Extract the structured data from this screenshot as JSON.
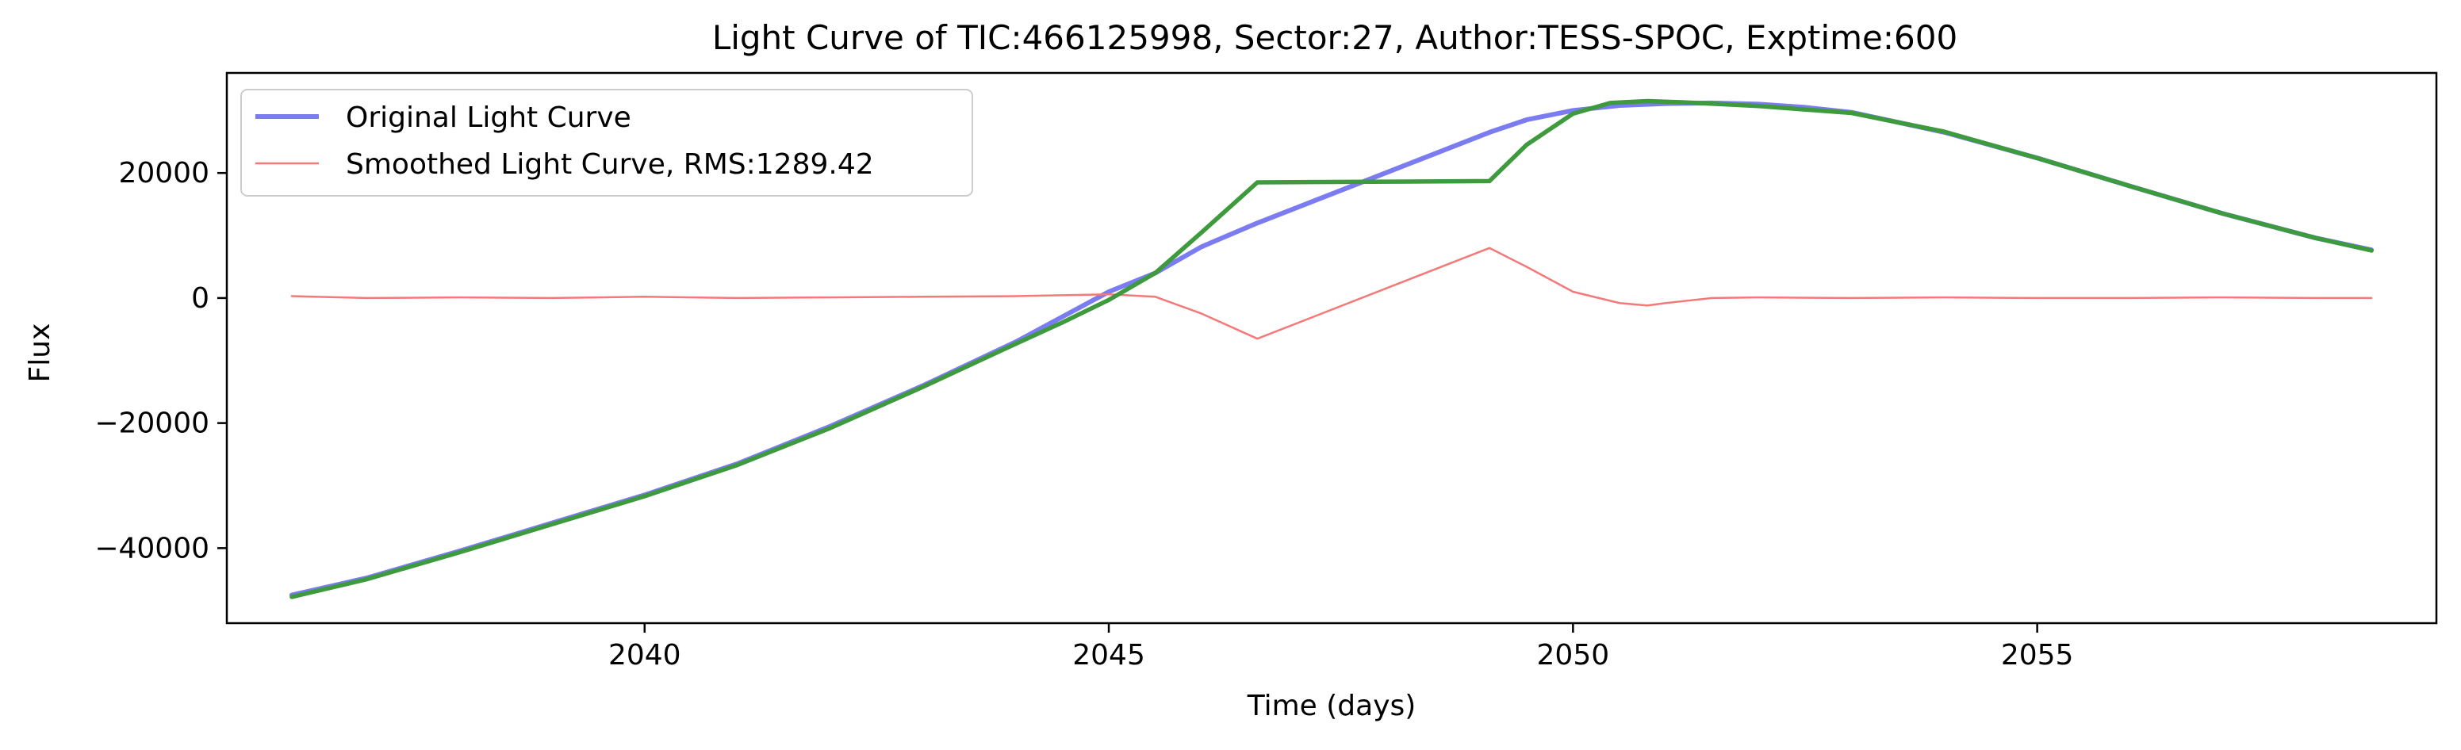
{
  "chart_data": {
    "type": "line",
    "title": "Light Curve of TIC:466125998, Sector:27, Author:TESS-SPOC, Exptime:600",
    "xlabel": "Time (days)",
    "ylabel": "Flux",
    "xlim": [
      2035.5,
      2059.3
    ],
    "ylim": [
      -52000,
      36000
    ],
    "xticks": [
      2040,
      2045,
      2050,
      2055
    ],
    "yticks": [
      20000,
      0,
      -20000,
      -40000
    ],
    "xtick_labels": [
      "2040",
      "2045",
      "2050",
      "2055"
    ],
    "ytick_labels": [
      "20000",
      "0",
      "−20000",
      "−40000"
    ],
    "grid": false,
    "legend_position": "upper-left",
    "series": [
      {
        "name": "Original Light Curve",
        "color": "#7b7bf2",
        "x": [
          2036.2,
          2037.0,
          2038.0,
          2039.0,
          2040.0,
          2041.0,
          2042.0,
          2043.0,
          2044.0,
          2045.0,
          2045.5,
          2046.0,
          2046.6,
          2049.1,
          2049.5,
          2050.0,
          2050.5,
          2051.0,
          2051.5,
          2052.0,
          2052.5,
          2053.0,
          2054.0,
          2055.0,
          2056.0,
          2057.0,
          2058.0,
          2058.6
        ],
        "values": [
          -47500,
          -44800,
          -40500,
          -36000,
          -31500,
          -26500,
          -20500,
          -14000,
          -7000,
          1000,
          4000,
          8200,
          12000,
          26500,
          28500,
          30000,
          30800,
          31100,
          31200,
          31000,
          30500,
          29700,
          26500,
          22400,
          17900,
          13500,
          9600,
          7700
        ]
      },
      {
        "name": "Smoothed Light Curve, RMS:1289.42",
        "color": "#f47a7a",
        "x": [
          2036.2,
          2037.0,
          2038.0,
          2039.0,
          2040.0,
          2041.0,
          2042.0,
          2043.0,
          2044.0,
          2045.0,
          2045.5,
          2046.0,
          2046.6,
          2049.1,
          2049.5,
          2050.0,
          2050.5,
          2050.8,
          2051.0,
          2051.5,
          2052.0,
          2053.0,
          2054.0,
          2055.0,
          2056.0,
          2057.0,
          2058.0,
          2058.6
        ],
        "values": [
          300,
          0,
          100,
          0,
          200,
          0,
          100,
          200,
          300,
          600,
          200,
          -2500,
          -6500,
          8000,
          5000,
          1000,
          -800,
          -1200,
          -800,
          0,
          100,
          0,
          100,
          0,
          0,
          100,
          0,
          0
        ]
      },
      {
        "color": "#3d9a3d",
        "x": [
          2036.2,
          2037.0,
          2038.0,
          2039.0,
          2040.0,
          2041.0,
          2042.0,
          2043.0,
          2044.0,
          2044.5,
          2045.0,
          2045.5,
          2046.0,
          2046.6,
          2049.1,
          2049.5,
          2050.0,
          2050.4,
          2050.8,
          2051.2,
          2051.6,
          2052.0,
          2053.0,
          2054.0,
          2055.0,
          2056.0,
          2057.0,
          2058.0,
          2058.6
        ],
        "values": [
          -47800,
          -45000,
          -40700,
          -36200,
          -31700,
          -26700,
          -20800,
          -14200,
          -7300,
          -3900,
          -300,
          4000,
          10500,
          18500,
          18700,
          24500,
          29500,
          31200,
          31500,
          31300,
          31000,
          30700,
          29600,
          26600,
          22400,
          17900,
          13500,
          9600,
          7600
        ]
      }
    ]
  }
}
